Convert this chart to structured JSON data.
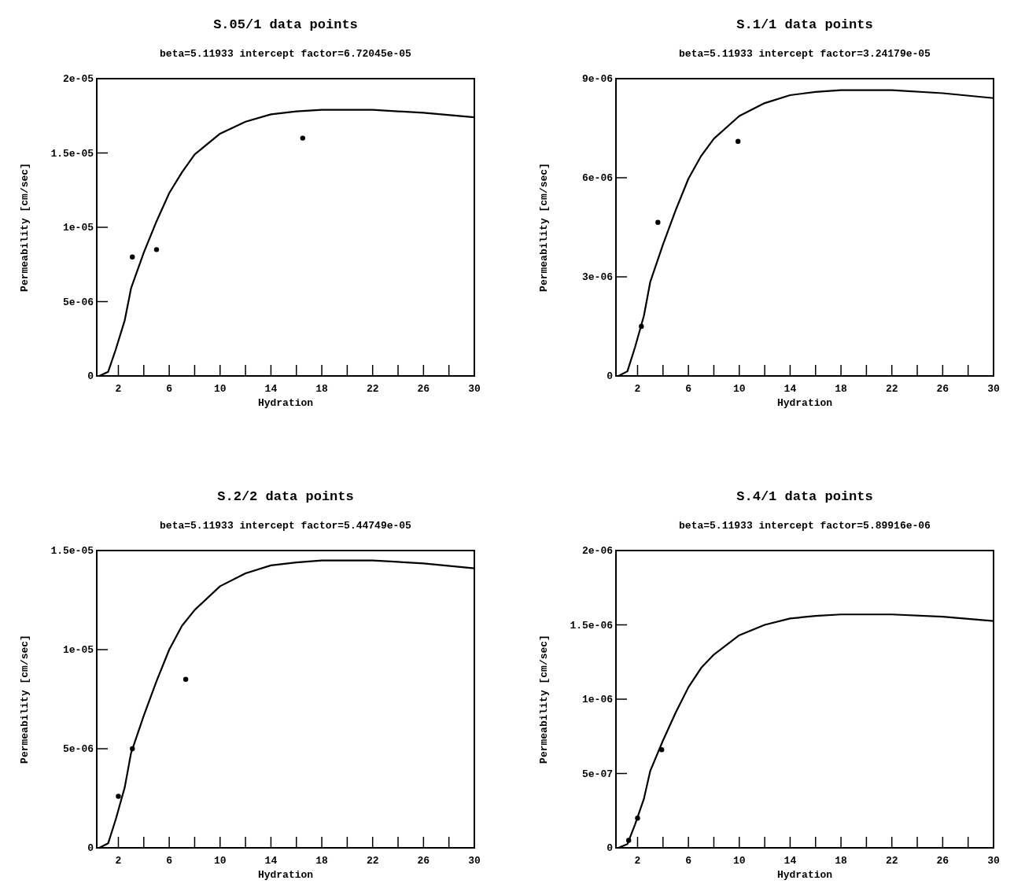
{
  "chart_data": [
    {
      "type": "line",
      "title": "S.05/1 data points",
      "subtitle": "beta=5.11933 intercept factor=6.72045e-05",
      "xlabel": "Hydration",
      "ylabel": "Permeability [cm/sec]",
      "xlim": [
        0.3,
        30
      ],
      "xticks": [
        2,
        {
          "value": 4,
          "label": null
        },
        6,
        {
          "value": 8,
          "label": null
        },
        10,
        {
          "value": 12,
          "label": null
        },
        14,
        {
          "value": 16,
          "label": null
        },
        18,
        {
          "value": 20,
          "label": null
        },
        22,
        {
          "value": 24,
          "label": null
        },
        26,
        {
          "value": 28,
          "label": null
        },
        30
      ],
      "ylim": [
        0,
        2e-05
      ],
      "yticks": [
        {
          "value": 0,
          "label": "0"
        },
        {
          "value": 5e-06,
          "label": "5e-06"
        },
        {
          "value": 1e-05,
          "label": "1e-05"
        },
        {
          "value": 1.5e-05,
          "label": "1.5e-05"
        },
        {
          "value": 2e-05,
          "label": "2e-05"
        }
      ],
      "series": [
        {
          "color": "#000000",
          "line_style": "solid",
          "marker": "none",
          "x": [
            0.5,
            1.2,
            1.8,
            2.5,
            3,
            4,
            5,
            6,
            7,
            8,
            10,
            12,
            14,
            16,
            18,
            20,
            22,
            26,
            30
          ],
          "values": [
            0,
            2.8e-07,
            1.8e-06,
            3.74e-06,
            5.9e-06,
            8.3e-06,
            1.04e-05,
            1.23e-05,
            1.37e-05,
            1.49e-05,
            1.63e-05,
            1.71e-05,
            1.76e-05,
            1.78e-05,
            1.79e-05,
            1.79e-05,
            1.79e-05,
            1.77e-05,
            1.74e-05
          ]
        },
        {
          "type": "scatter",
          "color": "#000000",
          "marker": "circle",
          "x": [
            3.1,
            5.0,
            16.5
          ],
          "values": [
            8e-06,
            8.5e-06,
            1.6e-05
          ]
        }
      ]
    },
    {
      "type": "line",
      "title": "S.1/1 data points",
      "subtitle": "beta=5.11933 intercept factor=3.24179e-05",
      "xlabel": "Hydration",
      "ylabel": "Permeability [cm/sec]",
      "xlim": [
        0.3,
        30
      ],
      "xticks": [
        2,
        {
          "value": 4,
          "label": null
        },
        6,
        {
          "value": 8,
          "label": null
        },
        10,
        {
          "value": 12,
          "label": null
        },
        14,
        {
          "value": 16,
          "label": null
        },
        18,
        {
          "value": 20,
          "label": null
        },
        22,
        {
          "value": 24,
          "label": null
        },
        26,
        {
          "value": 28,
          "label": null
        },
        30
      ],
      "ylim": [
        0,
        9e-06
      ],
      "yticks": [
        {
          "value": 0,
          "label": "0"
        },
        {
          "value": 3e-06,
          "label": "3e-06"
        },
        {
          "value": 6e-06,
          "label": "6e-06"
        },
        {
          "value": 9e-06,
          "label": "9e-06"
        }
      ],
      "series": [
        {
          "color": "#000000",
          "line_style": "solid",
          "marker": "none",
          "x": [
            0.5,
            1.2,
            1.8,
            2.5,
            3,
            4,
            5,
            6,
            7,
            8,
            10,
            12,
            14,
            16,
            18,
            20,
            22,
            26,
            30
          ],
          "values": [
            0,
            1.4e-07,
            8.7e-07,
            1.82e-06,
            2.85e-06,
            3.98e-06,
            5.02e-06,
            5.97e-06,
            6.66e-06,
            7.18e-06,
            7.87e-06,
            8.26e-06,
            8.5e-06,
            8.6e-06,
            8.65e-06,
            8.65e-06,
            8.65e-06,
            8.56e-06,
            8.41e-06
          ]
        },
        {
          "type": "scatter",
          "color": "#000000",
          "marker": "circle",
          "x": [
            2.3,
            3.6,
            9.9
          ],
          "values": [
            1.5e-06,
            4.65e-06,
            7.1e-06
          ]
        }
      ]
    },
    {
      "type": "line",
      "title": "S.2/2 data points",
      "subtitle": "beta=5.11933 intercept factor=5.44749e-05",
      "xlabel": "Hydration",
      "ylabel": "Permeability [cm/sec]",
      "xlim": [
        0.3,
        30
      ],
      "xticks": [
        2,
        {
          "value": 4,
          "label": null
        },
        6,
        {
          "value": 8,
          "label": null
        },
        10,
        {
          "value": 12,
          "label": null
        },
        14,
        {
          "value": 16,
          "label": null
        },
        18,
        {
          "value": 20,
          "label": null
        },
        22,
        {
          "value": 24,
          "label": null
        },
        26,
        {
          "value": 28,
          "label": null
        },
        30
      ],
      "ylim": [
        0,
        1.5e-05
      ],
      "yticks": [
        {
          "value": 0,
          "label": "0"
        },
        {
          "value": 5e-06,
          "label": "5e-06"
        },
        {
          "value": 1e-05,
          "label": "1e-05"
        },
        {
          "value": 1.5e-05,
          "label": "1.5e-05"
        }
      ],
      "series": [
        {
          "color": "#000000",
          "line_style": "solid",
          "marker": "none",
          "x": [
            0.5,
            1.2,
            1.8,
            2.5,
            3,
            4,
            5,
            6,
            7,
            8,
            10,
            12,
            14,
            16,
            18,
            20,
            22,
            26,
            30
          ],
          "values": [
            0,
            2.3e-07,
            1.45e-06,
            3.05e-06,
            4.79e-06,
            6.67e-06,
            8.41e-06,
            1e-05,
            1.12e-05,
            1.2e-05,
            1.32e-05,
            1.385e-05,
            1.425e-05,
            1.44e-05,
            1.45e-05,
            1.45e-05,
            1.45e-05,
            1.435e-05,
            1.41e-05
          ]
        },
        {
          "type": "scatter",
          "color": "#000000",
          "marker": "circle",
          "x": [
            2.0,
            3.1,
            7.3
          ],
          "values": [
            2.6e-06,
            5e-06,
            8.5e-06
          ]
        }
      ]
    },
    {
      "type": "line",
      "title": "S.4/1 data points",
      "subtitle": "beta=5.11933 intercept factor=5.89916e-06",
      "xlabel": "Hydration",
      "ylabel": "Permeability [cm/sec]",
      "xlim": [
        0.3,
        30
      ],
      "xticks": [
        2,
        {
          "value": 4,
          "label": null
        },
        6,
        {
          "value": 8,
          "label": null
        },
        10,
        {
          "value": 12,
          "label": null
        },
        14,
        {
          "value": 16,
          "label": null
        },
        18,
        {
          "value": 20,
          "label": null
        },
        22,
        {
          "value": 24,
          "label": null
        },
        26,
        {
          "value": 28,
          "label": null
        },
        30
      ],
      "ylim": [
        0,
        2e-06
      ],
      "yticks": [
        {
          "value": 0,
          "label": "0"
        },
        {
          "value": 5e-07,
          "label": "5e-07"
        },
        {
          "value": 1e-06,
          "label": "1e-06"
        },
        {
          "value": 1.5e-06,
          "label": "1.5e-06"
        },
        {
          "value": 2e-06,
          "label": "2e-06"
        }
      ],
      "series": [
        {
          "color": "#000000",
          "line_style": "solid",
          "marker": "none",
          "x": [
            0.5,
            1.2,
            1.8,
            2.5,
            3,
            4,
            5,
            6,
            7,
            8,
            10,
            12,
            14,
            16,
            18,
            20,
            22,
            26,
            30
          ],
          "values": [
            0,
            2.5e-08,
            1.57e-07,
            3.3e-07,
            5.18e-07,
            7.22e-07,
            9.1e-07,
            1.08e-06,
            1.21e-06,
            1.3e-06,
            1.43e-06,
            1.5e-06,
            1.543e-06,
            1.56e-06,
            1.57e-06,
            1.57e-06,
            1.57e-06,
            1.555e-06,
            1.526e-06
          ]
        },
        {
          "type": "scatter",
          "color": "#000000",
          "marker": "circle",
          "x": [
            1.3,
            2.0,
            3.9
          ],
          "values": [
            5e-08,
            2e-07,
            6.6e-07
          ]
        }
      ]
    }
  ]
}
